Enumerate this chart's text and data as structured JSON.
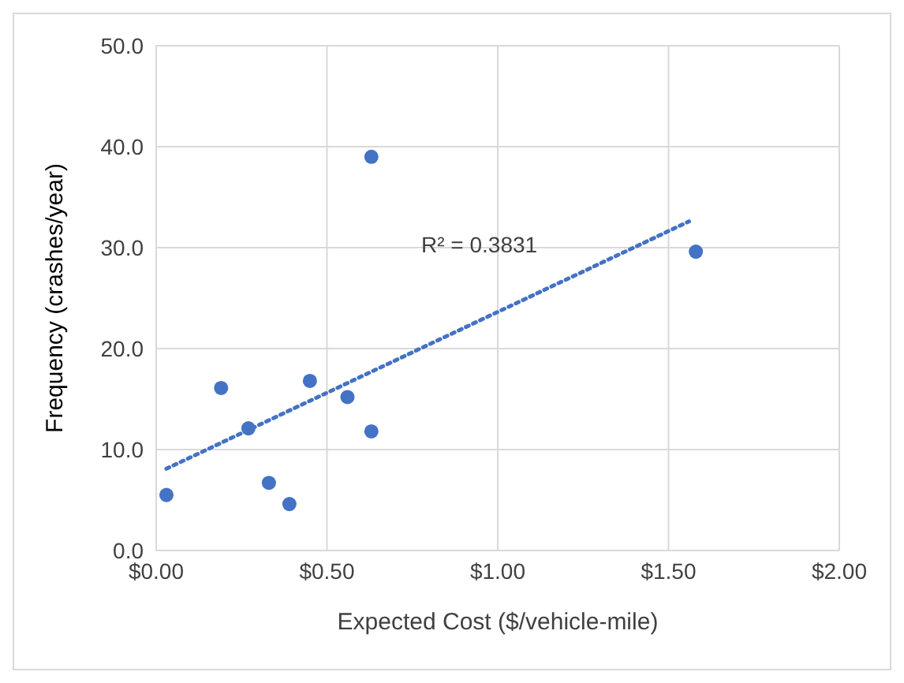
{
  "chart_data": {
    "type": "scatter",
    "xlabel": "Expected Cost ($/vehicle-mile)",
    "ylabel": "Frequency (crashes/year)",
    "annotations": [
      "R² = 0.3831"
    ],
    "xlim": [
      0,
      2
    ],
    "xticks": [
      {
        "value": 0,
        "label": "$0.00"
      },
      {
        "value": 0.5,
        "label": "$0.50"
      },
      {
        "value": 1,
        "label": "$1.00"
      },
      {
        "value": 1.5,
        "label": "$1.50"
      },
      {
        "value": 2,
        "label": "$2.00"
      }
    ],
    "ylim": [
      0,
      50
    ],
    "yticks": [
      {
        "value": 0,
        "label": "0.0"
      },
      {
        "value": 10,
        "label": "10.0"
      },
      {
        "value": 20,
        "label": "20.0"
      },
      {
        "value": 30,
        "label": "30.0"
      },
      {
        "value": 40,
        "label": "40.0"
      },
      {
        "value": 50,
        "label": "50.0"
      }
    ],
    "grid": true,
    "marker": "circle",
    "series": [
      {
        "color": "#4472c4",
        "x": [
          0.03,
          0.19,
          0.27,
          0.33,
          0.39,
          0.45,
          0.56,
          0.63,
          0.63,
          1.58
        ],
        "values": [
          5.5,
          16.1,
          12.1,
          6.7,
          4.6,
          16.8,
          15.2,
          11.8,
          39.0,
          29.6
        ]
      },
      {
        "type": "line",
        "color": "#4472c4",
        "line_style": "dotted",
        "marker": "none",
        "x": [
          0.03,
          1.56
        ],
        "values": [
          8.1,
          32.6
        ]
      }
    ]
  }
}
